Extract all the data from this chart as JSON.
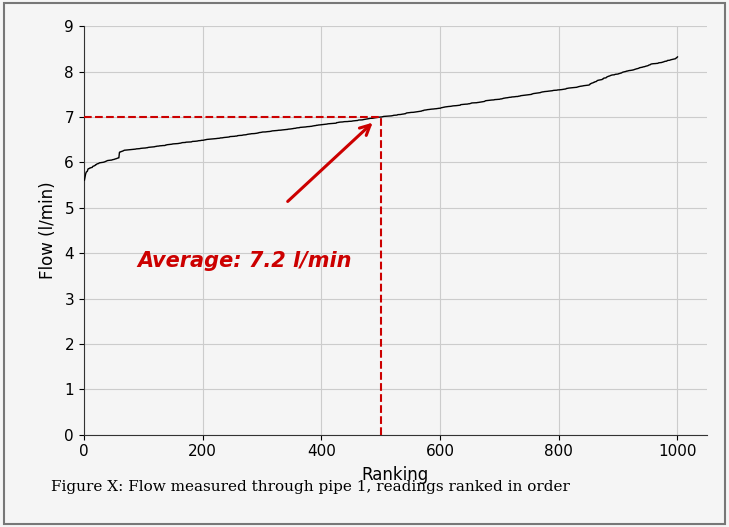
{
  "title": "",
  "xlabel": "Ranking",
  "ylabel": "Flow (l/min)",
  "xlim": [
    0,
    1050
  ],
  "ylim": [
    0,
    9
  ],
  "xticks": [
    0,
    200,
    400,
    600,
    800,
    1000
  ],
  "yticks": [
    0,
    1,
    2,
    3,
    4,
    5,
    6,
    7,
    8,
    9
  ],
  "n_points": 1000,
  "avg_y": 7.0,
  "avg_x": 500,
  "avg_label": "Average: 7.2 l/min",
  "avg_color": "#cc0000",
  "line_color": "#000000",
  "background_color": "#f5f5f5",
  "figure_caption": "Figure X: Flow measured through pipe 1, readings ranked in order",
  "caption_fontsize": 11,
  "axis_fontsize": 12,
  "tick_fontsize": 11,
  "grid_color": "#cccccc",
  "curve_start_y": 5.5,
  "curve_end_y": 8.3
}
